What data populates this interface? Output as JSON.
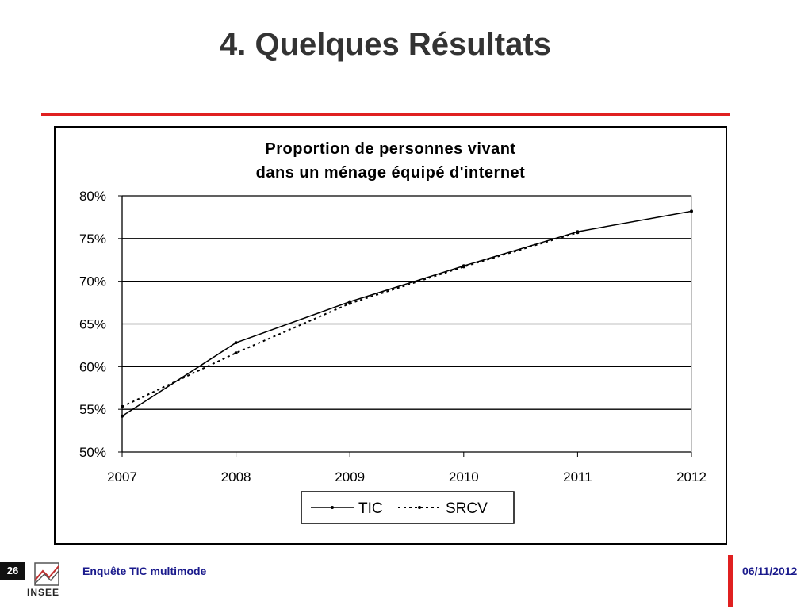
{
  "slide": {
    "title": "4. Quelques Résultats",
    "page_number": "26",
    "footer_text": "Enquête TIC multimode",
    "date": "06/11/2012",
    "logo_text": "INSEE"
  },
  "colors": {
    "accent": "#e02020",
    "footer_text": "#1a1a8c"
  },
  "chart_data": {
    "type": "line",
    "title": [
      "Proportion de personnes vivant",
      "dans un ménage équipé d'internet"
    ],
    "categories": [
      "2007",
      "2008",
      "2009",
      "2010",
      "2011",
      "2012"
    ],
    "ylim": [
      50,
      80
    ],
    "yticks": [
      50,
      55,
      60,
      65,
      70,
      75,
      80
    ],
    "ytick_labels": [
      "50%",
      "55%",
      "60%",
      "65%",
      "70%",
      "75%",
      "80%"
    ],
    "grid": true,
    "legend_position": "bottom",
    "series": [
      {
        "name": "TIC",
        "style": "solid",
        "values": [
          54.2,
          62.8,
          67.6,
          71.8,
          75.8,
          78.2
        ]
      },
      {
        "name": "SRCV",
        "style": "dotted",
        "values": [
          55.3,
          61.6,
          67.4,
          71.7,
          75.7,
          null
        ]
      }
    ]
  }
}
